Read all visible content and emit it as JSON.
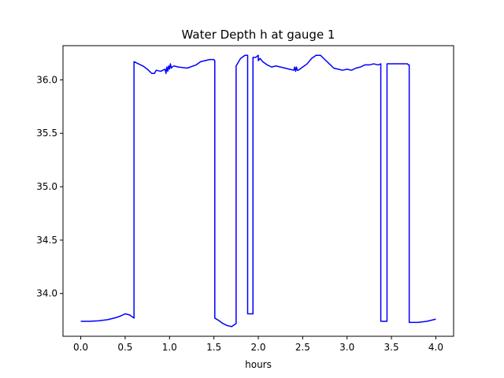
{
  "chart_data": {
    "type": "line",
    "title": "Water Depth h at gauge 1",
    "xlabel": "hours",
    "ylabel": "",
    "xlim": [
      -0.2,
      4.2
    ],
    "ylim": [
      33.6,
      36.32
    ],
    "xticks": [
      "0.0",
      "0.5",
      "1.0",
      "1.5",
      "2.0",
      "2.5",
      "3.0",
      "3.5",
      "4.0"
    ],
    "yticks": [
      "34.0",
      "34.5",
      "35.0",
      "35.5",
      "36.0"
    ],
    "grid": false,
    "legend": "none",
    "series": [
      {
        "color": "#0000ff",
        "x": [
          0.0,
          0.1,
          0.2,
          0.3,
          0.4,
          0.45,
          0.5,
          0.55,
          0.6,
          0.6,
          0.7,
          0.75,
          0.8,
          0.83,
          0.85,
          0.9,
          0.95,
          0.96,
          0.97,
          0.98,
          0.99,
          1.0,
          1.01,
          1.02,
          1.03,
          1.05,
          1.1,
          1.2,
          1.3,
          1.35,
          1.4,
          1.45,
          1.5,
          1.51,
          1.51,
          1.55,
          1.6,
          1.65,
          1.7,
          1.75,
          1.75,
          1.8,
          1.85,
          1.88,
          1.88,
          1.94,
          1.94,
          1.97,
          2.0,
          2.0,
          2.02,
          2.05,
          2.1,
          2.15,
          2.2,
          2.25,
          2.3,
          2.35,
          2.4,
          2.41,
          2.42,
          2.43,
          2.44,
          2.45,
          2.5,
          2.55,
          2.6,
          2.65,
          2.7,
          2.75,
          2.8,
          2.85,
          2.9,
          2.95,
          3.0,
          3.05,
          3.1,
          3.15,
          3.2,
          3.25,
          3.3,
          3.35,
          3.38,
          3.38,
          3.45,
          3.45,
          3.5,
          3.6,
          3.68,
          3.69,
          3.7,
          3.7,
          3.8,
          3.9,
          4.0
        ],
        "values": [
          33.74,
          33.74,
          33.745,
          33.755,
          33.775,
          33.79,
          33.81,
          33.8,
          33.77,
          36.17,
          36.13,
          36.1,
          36.06,
          36.06,
          36.09,
          36.08,
          36.1,
          36.06,
          36.12,
          36.08,
          36.13,
          36.1,
          36.15,
          36.11,
          36.12,
          36.13,
          36.12,
          36.11,
          36.14,
          36.17,
          36.18,
          36.19,
          36.19,
          36.18,
          33.77,
          33.75,
          33.72,
          33.7,
          33.69,
          33.72,
          36.13,
          36.2,
          36.23,
          36.23,
          33.81,
          33.81,
          36.21,
          36.21,
          36.23,
          36.18,
          36.2,
          36.17,
          36.14,
          36.12,
          36.13,
          36.12,
          36.11,
          36.1,
          36.09,
          36.12,
          36.08,
          36.12,
          36.09,
          36.09,
          36.12,
          36.15,
          36.2,
          36.23,
          36.23,
          36.19,
          36.15,
          36.11,
          36.1,
          36.09,
          36.1,
          36.09,
          36.11,
          36.12,
          36.14,
          36.14,
          36.15,
          36.14,
          36.15,
          33.74,
          33.74,
          36.15,
          36.15,
          36.15,
          36.15,
          36.14,
          36.14,
          33.73,
          33.73,
          33.74,
          33.76
        ]
      }
    ]
  }
}
